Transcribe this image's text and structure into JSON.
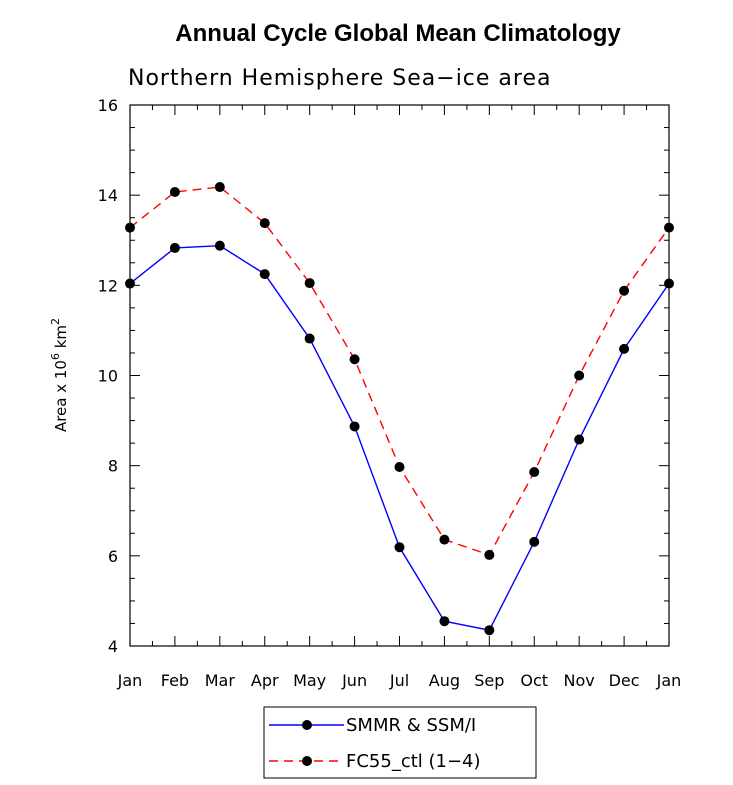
{
  "chart_data": {
    "type": "line",
    "title": "Annual Cycle Global Mean Climatology",
    "subtitle": "Northern Hemisphere Sea−ice area",
    "ylabel_prefix": "Area x 10",
    "ylabel_exp1": "6",
    "ylabel_mid": " km",
    "ylabel_exp2": "2",
    "xlabel": "",
    "categories": [
      "Jan",
      "Feb",
      "Mar",
      "Apr",
      "May",
      "Jun",
      "Jul",
      "Aug",
      "Sep",
      "Oct",
      "Nov",
      "Dec",
      "Jan"
    ],
    "ylim": [
      4,
      16
    ],
    "yticks": [
      4,
      6,
      8,
      10,
      12,
      14,
      16
    ],
    "grid": false,
    "legend_position": "bottom-center",
    "series": [
      {
        "name": "SMMR & SSM/I",
        "color": "#0000ff",
        "dash": "solid",
        "marker": "filled-circle",
        "values": [
          12.04,
          12.83,
          12.88,
          12.25,
          10.82,
          8.87,
          6.19,
          4.55,
          4.35,
          6.31,
          8.58,
          10.59,
          12.04
        ]
      },
      {
        "name": "FC55_ctl (1−4)",
        "color": "#ff0000",
        "dash": "dashed",
        "marker": "filled-circle",
        "values": [
          13.28,
          14.07,
          14.18,
          13.38,
          12.05,
          10.36,
          7.97,
          6.36,
          6.02,
          7.86,
          10.0,
          11.88,
          13.28
        ]
      }
    ]
  }
}
